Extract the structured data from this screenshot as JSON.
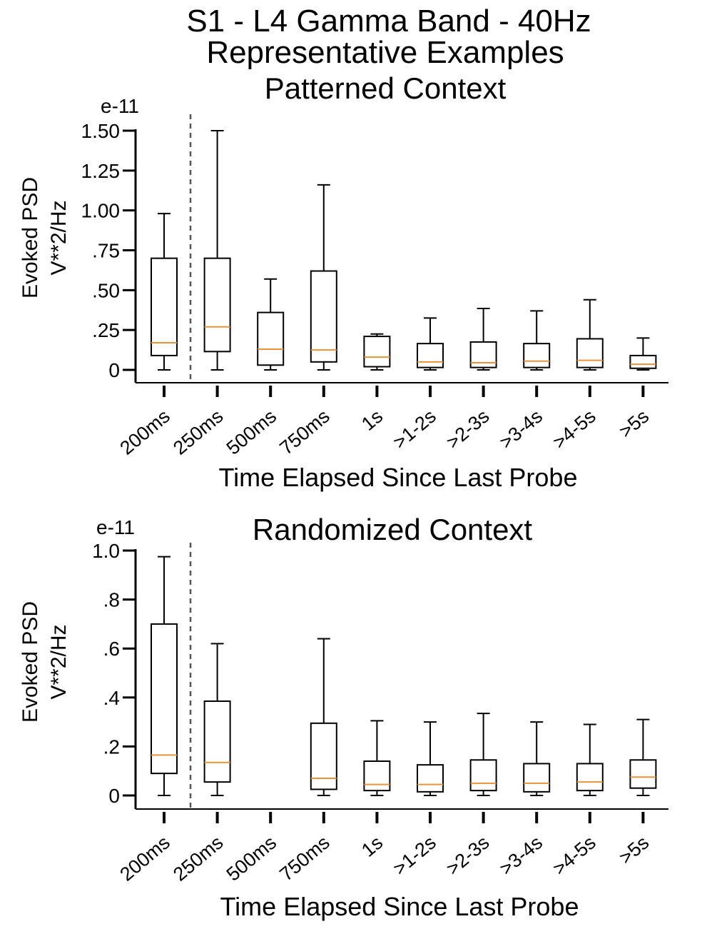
{
  "title_lines": [
    "S1 - L4 Gamma Band - 40Hz",
    "Representative Examples"
  ],
  "chart_data": [
    {
      "type": "boxplot",
      "title": "Patterned Context",
      "xlabel": "Time Elapsed Since  Last Probe",
      "ylabel_lines": [
        "Evoked PSD",
        "V**2/Hz"
      ],
      "y_exponent": "e-11",
      "ylim": [
        0,
        1.5
      ],
      "yticks": [
        0,
        0.25,
        0.5,
        0.75,
        1.0,
        1.25,
        1.5
      ],
      "ytick_labels": [
        "0",
        ".25",
        ".50",
        ".75",
        "1.00",
        "1.25",
        "1.50"
      ],
      "categories": [
        "200ms",
        "250ms",
        "500ms",
        "750ms",
        "1s",
        ">1-2s",
        ">2-3s",
        ">3-4s",
        ">4-5s",
        ">5s"
      ],
      "separator_after": "200ms",
      "median_color": "#e8923a",
      "boxes": [
        {
          "whislo": 0.0,
          "q1": 0.09,
          "med": 0.17,
          "q3": 0.7,
          "whishi": 0.98
        },
        {
          "whislo": 0.0,
          "q1": 0.115,
          "med": 0.27,
          "q3": 0.7,
          "whishi": 1.5
        },
        {
          "whislo": 0.0,
          "q1": 0.03,
          "med": 0.13,
          "q3": 0.36,
          "whishi": 0.57
        },
        {
          "whislo": 0.0,
          "q1": 0.05,
          "med": 0.125,
          "q3": 0.62,
          "whishi": 1.16
        },
        {
          "whislo": 0.0,
          "q1": 0.02,
          "med": 0.08,
          "q3": 0.21,
          "whishi": 0.225
        },
        {
          "whislo": 0.0,
          "q1": 0.015,
          "med": 0.05,
          "q3": 0.165,
          "whishi": 0.325
        },
        {
          "whislo": 0.0,
          "q1": 0.015,
          "med": 0.045,
          "q3": 0.175,
          "whishi": 0.385
        },
        {
          "whislo": 0.0,
          "q1": 0.015,
          "med": 0.055,
          "q3": 0.165,
          "whishi": 0.37
        },
        {
          "whislo": 0.0,
          "q1": 0.015,
          "med": 0.06,
          "q3": 0.195,
          "whishi": 0.44
        },
        {
          "whislo": 0.0,
          "q1": 0.01,
          "med": 0.035,
          "q3": 0.09,
          "whishi": 0.2
        }
      ]
    },
    {
      "type": "boxplot",
      "title": "Randomized Context",
      "xlabel": "Time Elapsed Since  Last Probe",
      "ylabel_lines": [
        "Evoked PSD",
        "V**2/Hz"
      ],
      "y_exponent": "e-11",
      "ylim": [
        0,
        1.0
      ],
      "yticks": [
        0,
        0.2,
        0.4,
        0.6,
        0.8,
        1.0
      ],
      "ytick_labels": [
        "0",
        ".2",
        ".4",
        ".6",
        ".8",
        "1.0"
      ],
      "categories": [
        "200ms",
        "250ms",
        "500ms",
        "750ms",
        "1s",
        ">1-2s",
        ">2-3s",
        ">3-4s",
        ">4-5s",
        ">5s"
      ],
      "separator_after": "200ms",
      "median_color": "#e8923a",
      "boxes": [
        {
          "whislo": 0.0,
          "q1": 0.09,
          "med": 0.165,
          "q3": 0.7,
          "whishi": 0.975
        },
        {
          "whislo": 0.0,
          "q1": 0.055,
          "med": 0.135,
          "q3": 0.385,
          "whishi": 0.62
        },
        null,
        {
          "whislo": 0.0,
          "q1": 0.025,
          "med": 0.07,
          "q3": 0.295,
          "whishi": 0.64
        },
        {
          "whislo": 0.0,
          "q1": 0.02,
          "med": 0.045,
          "q3": 0.14,
          "whishi": 0.305
        },
        {
          "whislo": 0.0,
          "q1": 0.015,
          "med": 0.045,
          "q3": 0.125,
          "whishi": 0.3
        },
        {
          "whislo": 0.0,
          "q1": 0.02,
          "med": 0.05,
          "q3": 0.145,
          "whishi": 0.335
        },
        {
          "whislo": 0.0,
          "q1": 0.015,
          "med": 0.05,
          "q3": 0.13,
          "whishi": 0.3
        },
        {
          "whislo": 0.0,
          "q1": 0.02,
          "med": 0.055,
          "q3": 0.13,
          "whishi": 0.29
        },
        {
          "whislo": 0.0,
          "q1": 0.03,
          "med": 0.075,
          "q3": 0.145,
          "whishi": 0.31
        }
      ]
    }
  ]
}
